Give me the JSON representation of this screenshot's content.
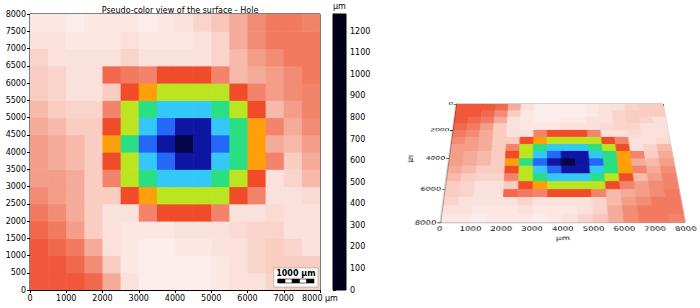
{
  "chart_data": [
    {
      "type": "heatmap",
      "title": "Pseudo-color view of the surface - Hole",
      "x": [
        250,
        750,
        1250,
        1750,
        2250,
        2750,
        3250,
        3750,
        4250,
        4750,
        5250,
        5750,
        6250,
        6750,
        7250,
        7750
      ],
      "y": [
        250,
        750,
        1250,
        1750,
        2250,
        2750,
        3250,
        3750,
        4250,
        4750,
        5250,
        5750,
        6250,
        6750,
        7250,
        7750
      ],
      "z": [
        [
          1000,
          1000,
          1000,
          1020,
          1100,
          1180,
          1220,
          1220,
          1220,
          1220,
          1200,
          1180,
          1180,
          1160,
          1150,
          1150
        ],
        [
          1000,
          1000,
          1020,
          1060,
          1150,
          1200,
          1220,
          1220,
          1220,
          1220,
          1200,
          1180,
          1160,
          1150,
          1150,
          1150
        ],
        [
          1000,
          1020,
          1040,
          1100,
          1180,
          1200,
          1220,
          1220,
          1200,
          1200,
          1180,
          1180,
          1160,
          1150,
          1160,
          1180
        ],
        [
          1020,
          1040,
          1080,
          1150,
          1180,
          1200,
          1200,
          1200,
          1180,
          1180,
          1180,
          1170,
          1160,
          1160,
          1180,
          1180
        ],
        [
          1040,
          1060,
          1100,
          1150,
          1180,
          1180,
          1050,
          980,
          980,
          980,
          1050,
          1180,
          1180,
          1170,
          1180,
          1180
        ],
        [
          1060,
          1080,
          1100,
          1150,
          1150,
          980,
          840,
          680,
          680,
          680,
          680,
          980,
          1050,
          1180,
          1180,
          1170
        ],
        [
          1080,
          1080,
          1100,
          1150,
          1050,
          680,
          520,
          380,
          380,
          380,
          520,
          680,
          980,
          1180,
          1160,
          1120
        ],
        [
          1080,
          1100,
          1120,
          1150,
          980,
          680,
          380,
          250,
          120,
          120,
          380,
          520,
          840,
          1050,
          1150,
          1100
        ],
        [
          1080,
          1100,
          1120,
          1150,
          840,
          520,
          250,
          120,
          40,
          120,
          250,
          520,
          840,
          1100,
          1120,
          1080
        ],
        [
          1100,
          1120,
          1150,
          1150,
          980,
          680,
          380,
          250,
          120,
          120,
          380,
          520,
          840,
          1050,
          1100,
          1060
        ],
        [
          1120,
          1150,
          1160,
          1160,
          1050,
          680,
          520,
          380,
          380,
          380,
          520,
          680,
          980,
          1120,
          1080,
          1050
        ],
        [
          1150,
          1160,
          1180,
          1180,
          1150,
          980,
          840,
          680,
          680,
          680,
          680,
          980,
          1050,
          1080,
          1060,
          1050
        ],
        [
          1150,
          1160,
          1180,
          1180,
          1020,
          1040,
          1050,
          980,
          980,
          980,
          1050,
          1120,
          1100,
          1080,
          1060,
          1040
        ],
        [
          1160,
          1180,
          1180,
          1180,
          1180,
          1160,
          1180,
          1180,
          1180,
          1180,
          1160,
          1120,
          1080,
          1060,
          1040,
          1040
        ],
        [
          1180,
          1180,
          1200,
          1200,
          1200,
          1180,
          1200,
          1200,
          1200,
          1180,
          1160,
          1100,
          1060,
          1040,
          1040,
          1040
        ],
        [
          1200,
          1200,
          1220,
          1200,
          1200,
          1200,
          1220,
          1200,
          1180,
          1160,
          1140,
          1100,
          1060,
          1040,
          1040,
          1050
        ]
      ],
      "xlim": [
        0,
        8000
      ],
      "ylim": [
        0,
        8000
      ],
      "xticks": [
        0,
        1000,
        2000,
        3000,
        4000,
        5000,
        6000,
        7000,
        {
          "value": 8000,
          "label": "8000 µm"
        }
      ],
      "yticks": [
        0,
        500,
        1000,
        1500,
        2000,
        2500,
        3000,
        3500,
        4000,
        4500,
        5000,
        5500,
        6000,
        6500,
        7000,
        7500,
        8000
      ],
      "colorbar": {
        "range": [
          0,
          1280
        ],
        "ticks": [
          0,
          100,
          200,
          300,
          400,
          500,
          600,
          700,
          800,
          900,
          1000,
          1100,
          1200
        ],
        "label": "µm"
      },
      "scale_bar": {
        "length": 1000,
        "label": "1000 µm"
      },
      "grid": false
    },
    {
      "type": "surface",
      "x": [
        250,
        750,
        1250,
        1750,
        2250,
        2750,
        3250,
        3750,
        4250,
        4750,
        5250,
        5750,
        6250,
        6750,
        7250,
        7750
      ],
      "y": [
        250,
        750,
        1250,
        1750,
        2250,
        2750,
        3250,
        3750,
        4250,
        4750,
        5250,
        5750,
        6250,
        6750,
        7250,
        7750
      ],
      "z": [
        [
          1000,
          1000,
          1000,
          1020,
          1100,
          1180,
          1220,
          1220,
          1220,
          1220,
          1200,
          1180,
          1180,
          1160,
          1150,
          1150
        ],
        [
          1000,
          1000,
          1020,
          1060,
          1150,
          1200,
          1220,
          1220,
          1220,
          1220,
          1200,
          1180,
          1160,
          1150,
          1150,
          1150
        ],
        [
          1000,
          1020,
          1040,
          1100,
          1180,
          1200,
          1220,
          1220,
          1200,
          1200,
          1180,
          1180,
          1160,
          1150,
          1160,
          1180
        ],
        [
          1020,
          1040,
          1080,
          1150,
          1180,
          1200,
          1200,
          1200,
          1180,
          1180,
          1180,
          1170,
          1160,
          1160,
          1180,
          1180
        ],
        [
          1040,
          1060,
          1100,
          1150,
          1180,
          1180,
          1050,
          980,
          980,
          980,
          1050,
          1180,
          1180,
          1170,
          1180,
          1180
        ],
        [
          1060,
          1080,
          1100,
          1150,
          1150,
          980,
          840,
          680,
          680,
          680,
          680,
          980,
          1050,
          1180,
          1180,
          1170
        ],
        [
          1080,
          1080,
          1100,
          1150,
          1050,
          680,
          520,
          380,
          380,
          380,
          520,
          680,
          980,
          1180,
          1160,
          1120
        ],
        [
          1080,
          1100,
          1120,
          1150,
          980,
          680,
          380,
          250,
          120,
          120,
          380,
          520,
          840,
          1050,
          1150,
          1100
        ],
        [
          1080,
          1100,
          1120,
          1150,
          840,
          520,
          250,
          120,
          40,
          120,
          250,
          520,
          840,
          1100,
          1120,
          1080
        ],
        [
          1100,
          1120,
          1150,
          1150,
          980,
          680,
          380,
          250,
          120,
          120,
          380,
          520,
          840,
          1050,
          1100,
          1060
        ],
        [
          1120,
          1150,
          1160,
          1160,
          1050,
          680,
          520,
          380,
          380,
          380,
          520,
          680,
          980,
          1120,
          1080,
          1050
        ],
        [
          1150,
          1160,
          1180,
          1180,
          1150,
          980,
          840,
          680,
          680,
          680,
          680,
          980,
          1050,
          1080,
          1060,
          1050
        ],
        [
          1150,
          1160,
          1180,
          1180,
          1020,
          1040,
          1050,
          980,
          980,
          980,
          1050,
          1120,
          1100,
          1080,
          1060,
          1040
        ],
        [
          1160,
          1180,
          1180,
          1180,
          1180,
          1160,
          1180,
          1180,
          1180,
          1180,
          1160,
          1120,
          1080,
          1060,
          1040,
          1040
        ],
        [
          1180,
          1180,
          1200,
          1200,
          1200,
          1180,
          1200,
          1200,
          1200,
          1180,
          1160,
          1100,
          1060,
          1040,
          1040,
          1040
        ],
        [
          1200,
          1200,
          1220,
          1200,
          1200,
          1200,
          1220,
          1200,
          1180,
          1160,
          1140,
          1100,
          1060,
          1040,
          1040,
          1050
        ]
      ],
      "xlim": [
        0,
        8000
      ],
      "ylim": [
        0,
        8000
      ],
      "xticks": [
        0,
        1000,
        2000,
        3000,
        4000,
        5000,
        6000,
        7000,
        8000
      ],
      "yticks": [
        0,
        2000,
        4000,
        6000,
        8000
      ],
      "xlabel": "µm",
      "ylabel": "µm",
      "colorbar": {
        "range": [
          0,
          1280
        ]
      },
      "grid": false
    }
  ]
}
